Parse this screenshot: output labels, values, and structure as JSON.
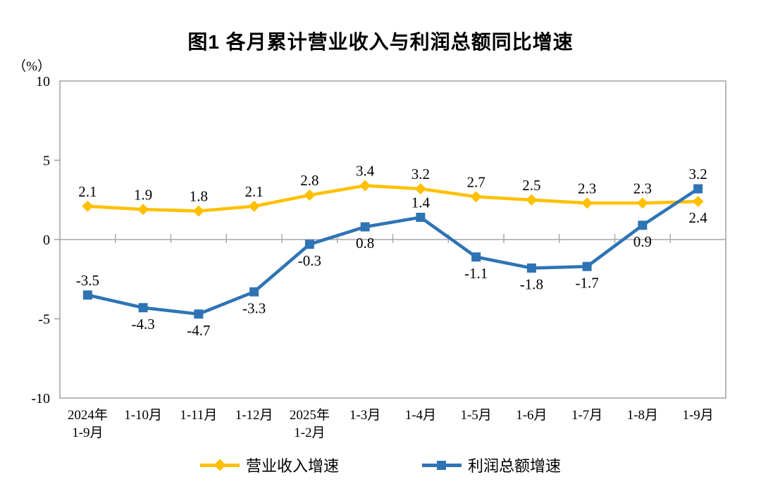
{
  "chart_data": {
    "type": "line",
    "title": "图1  各月累计营业收入与利润总额同比增速",
    "unit_label": "（%）",
    "categories": [
      "2024年\n1-9月",
      "1-10月",
      "1-11月",
      "1-12月",
      "2025年\n1-2月",
      "1-3月",
      "1-4月",
      "1-5月",
      "1-6月",
      "1-7月",
      "1-8月",
      "1-9月"
    ],
    "y_axis": {
      "min": -10,
      "max": 10,
      "ticks": [
        10,
        5,
        0,
        -5,
        -10
      ]
    },
    "grid": false,
    "axis_color": "#A6A6A6",
    "text_color": "#000000",
    "legend_position": "bottom",
    "series": [
      {
        "name": "营业收入增速",
        "color": "#FFC000",
        "marker": "diamond",
        "values": [
          2.1,
          1.9,
          1.8,
          2.1,
          2.8,
          3.4,
          3.2,
          2.7,
          2.5,
          2.3,
          2.3,
          2.4
        ],
        "label_above": [
          true,
          true,
          true,
          true,
          true,
          true,
          true,
          true,
          true,
          true,
          true,
          false
        ]
      },
      {
        "name": "利润总额增速",
        "color": "#2E74B5",
        "marker": "square",
        "values": [
          -3.5,
          -4.3,
          -4.7,
          -3.3,
          -0.3,
          0.8,
          1.4,
          -1.1,
          -1.8,
          -1.7,
          0.9,
          3.2
        ],
        "label_above": [
          true,
          false,
          false,
          false,
          false,
          false,
          true,
          false,
          false,
          false,
          false,
          true
        ]
      }
    ]
  }
}
